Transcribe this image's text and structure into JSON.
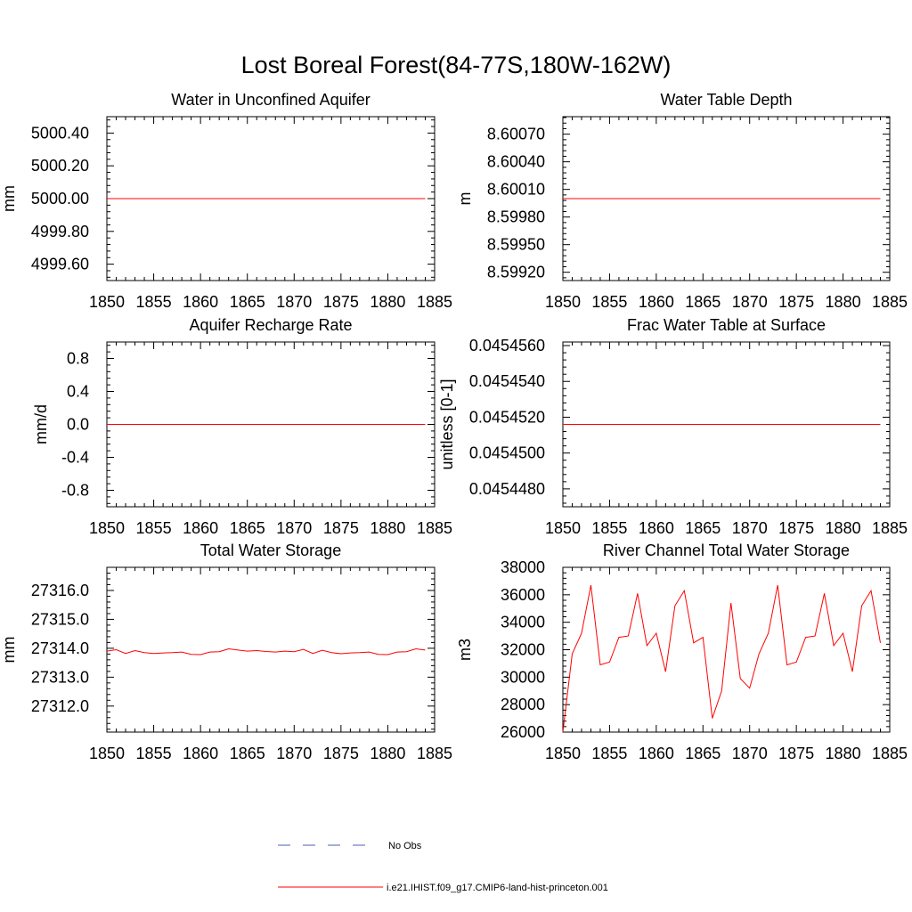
{
  "title": "Lost Boreal Forest(84-77S,180W-162W)",
  "colors": {
    "model": "#ff0000",
    "obs": "#4a5fb0",
    "axis": "#000000"
  },
  "legend": {
    "placement": "bottom-center",
    "obs_label": "No Obs",
    "model_label": "i.e21.IHIST.f09_g17.CMIP6-land-hist-princeton.001"
  },
  "chart_data": [
    {
      "type": "line",
      "title": "Water in Unconfined Aquifer",
      "ylabel": "mm",
      "xlim": [
        1850,
        1885
      ],
      "ylim": [
        4999.5,
        5000.5
      ],
      "x_ticks": [
        1850,
        1855,
        1860,
        1865,
        1870,
        1875,
        1880,
        1885
      ],
      "y_ticks": [
        4999.6,
        4999.8,
        5000.0,
        5000.2,
        5000.4
      ],
      "y_tick_labels": [
        "4999.60",
        "4999.80",
        "5000.00",
        "5000.20",
        "5000.40"
      ],
      "x_start": 1850,
      "y": [
        5000,
        5000,
        5000,
        5000,
        5000,
        5000,
        5000,
        5000,
        5000,
        5000,
        5000,
        5000,
        5000,
        5000,
        5000,
        5000,
        5000,
        5000,
        5000,
        5000,
        5000,
        5000,
        5000,
        5000,
        5000,
        5000,
        5000,
        5000,
        5000,
        5000,
        5000,
        5000,
        5000,
        5000,
        5000
      ]
    },
    {
      "type": "line",
      "title": "Water Table Depth",
      "ylabel": "m",
      "xlim": [
        1850,
        1885
      ],
      "ylim": [
        8.59911,
        8.60089
      ],
      "x_ticks": [
        1850,
        1855,
        1860,
        1865,
        1870,
        1875,
        1880,
        1885
      ],
      "y_ticks": [
        8.5992,
        8.5995,
        8.5998,
        8.6001,
        8.6004,
        8.6007
      ],
      "y_tick_labels": [
        "8.59920",
        "8.59950",
        "8.59980",
        "8.60010",
        "8.60040",
        "8.60070"
      ],
      "x_start": 1850,
      "y": [
        8.6,
        8.6,
        8.6,
        8.6,
        8.6,
        8.6,
        8.6,
        8.6,
        8.6,
        8.6,
        8.6,
        8.6,
        8.6,
        8.6,
        8.6,
        8.6,
        8.6,
        8.6,
        8.6,
        8.6,
        8.6,
        8.6,
        8.6,
        8.6,
        8.6,
        8.6,
        8.6,
        8.6,
        8.6,
        8.6,
        8.6,
        8.6,
        8.6,
        8.6,
        8.6
      ]
    },
    {
      "type": "line",
      "title": "Aquifer Recharge Rate",
      "ylabel": "mm/d",
      "xlim": [
        1850,
        1885
      ],
      "ylim": [
        -1.0,
        1.0
      ],
      "x_ticks": [
        1850,
        1855,
        1860,
        1865,
        1870,
        1875,
        1880,
        1885
      ],
      "y_ticks": [
        -0.8,
        -0.4,
        0.0,
        0.4,
        0.8
      ],
      "y_tick_labels": [
        "-0.8",
        "-0.4",
        "0.0",
        "0.4",
        "0.8"
      ],
      "x_start": 1850,
      "y": [
        0,
        0,
        0,
        0,
        0,
        0,
        0,
        0,
        0,
        0,
        0,
        0,
        0,
        0,
        0,
        0,
        0,
        0,
        0,
        0,
        0,
        0,
        0,
        0,
        0,
        0,
        0,
        0,
        0,
        0,
        0,
        0,
        0,
        0,
        0
      ]
    },
    {
      "type": "line",
      "title": "Frac Water Table at Surface",
      "ylabel": "unitless [0-1]",
      "xlim": [
        1850,
        1885
      ],
      "ylim": [
        0.045447,
        0.0454562
      ],
      "x_ticks": [
        1850,
        1855,
        1860,
        1865,
        1870,
        1875,
        1880,
        1885
      ],
      "y_ticks": [
        0.045448,
        0.04545,
        0.045452,
        0.045454,
        0.045456
      ],
      "y_tick_labels": [
        "0.0454480",
        "0.0454500",
        "0.0454520",
        "0.0454540",
        "0.0454560"
      ],
      "x_start": 1850,
      "y": [
        0.0454516,
        0.0454516,
        0.0454516,
        0.0454516,
        0.0454516,
        0.0454516,
        0.0454516,
        0.0454516,
        0.0454516,
        0.0454516,
        0.0454516,
        0.0454516,
        0.0454516,
        0.0454516,
        0.0454516,
        0.0454516,
        0.0454516,
        0.0454516,
        0.0454516,
        0.0454516,
        0.0454516,
        0.0454516,
        0.0454516,
        0.0454516,
        0.0454516,
        0.0454516,
        0.0454516,
        0.0454516,
        0.0454516,
        0.0454516,
        0.0454516,
        0.0454516,
        0.0454516,
        0.0454516,
        0.0454516
      ]
    },
    {
      "type": "line",
      "title": "Total Water Storage",
      "ylabel": "mm",
      "xlim": [
        1850,
        1885
      ],
      "ylim": [
        27311.1,
        27316.8
      ],
      "x_ticks": [
        1850,
        1855,
        1860,
        1865,
        1870,
        1875,
        1880,
        1885
      ],
      "y_ticks": [
        27312.0,
        27313.0,
        27314.0,
        27315.0,
        27316.0
      ],
      "y_tick_labels": [
        "27312.0",
        "27313.0",
        "27314.0",
        "27315.0",
        "27316.0"
      ],
      "x_start": 1850,
      "y": [
        27313.9,
        27313.95,
        27313.82,
        27313.92,
        27313.85,
        27313.82,
        27313.84,
        27313.85,
        27313.87,
        27313.79,
        27313.78,
        27313.87,
        27313.88,
        27313.98,
        27313.94,
        27313.9,
        27313.92,
        27313.89,
        27313.87,
        27313.9,
        27313.88,
        27313.96,
        27313.82,
        27313.93,
        27313.85,
        27313.81,
        27313.84,
        27313.85,
        27313.87,
        27313.79,
        27313.78,
        27313.87,
        27313.88,
        27313.98,
        27313.94
      ]
    },
    {
      "type": "line",
      "title": "River Channel Total Water Storage",
      "ylabel": "m3",
      "xlim": [
        1850,
        1885
      ],
      "ylim": [
        26000,
        38000
      ],
      "x_ticks": [
        1850,
        1855,
        1860,
        1865,
        1870,
        1875,
        1880,
        1885
      ],
      "y_ticks": [
        26000,
        28000,
        30000,
        32000,
        34000,
        36000,
        38000
      ],
      "y_tick_labels": [
        "26000",
        "28000",
        "30000",
        "32000",
        "34000",
        "36000",
        "38000"
      ],
      "x_start": 1850,
      "y": [
        26000,
        31700,
        33200,
        36700,
        30900,
        31100,
        32900,
        33000,
        36100,
        32300,
        33200,
        30400,
        35200,
        36300,
        32500,
        32900,
        27000,
        29000,
        35400,
        29900,
        29200,
        31700,
        33200,
        36700,
        30900,
        31100,
        32900,
        33000,
        36100,
        32300,
        33200,
        30400,
        35200,
        36300,
        32500
      ]
    }
  ]
}
